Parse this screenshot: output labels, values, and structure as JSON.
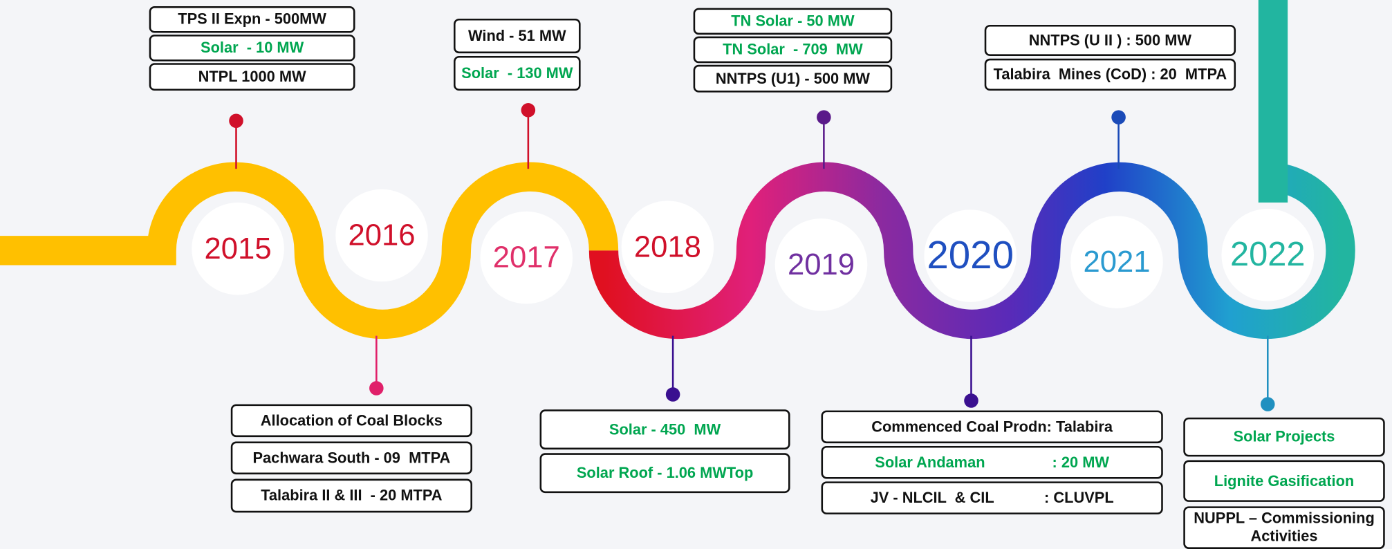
{
  "timeline": {
    "text_colors": {
      "black": "#111111",
      "green": "#00a650"
    },
    "years": [
      {
        "label": "2015",
        "color": "#d0102a",
        "pin_color": "#d0102a",
        "events": [
          {
            "text": "TPS II Expn - 500MW",
            "color": "black"
          },
          {
            "text": "Solar  - 10 MW",
            "color": "green"
          },
          {
            "text": "NTPL 1000 MW",
            "color": "black"
          }
        ]
      },
      {
        "label": "2016",
        "color": "#d0102a",
        "pin_color": "#e0206a",
        "events": [
          {
            "text": "Allocation of Coal Blocks",
            "color": "black"
          },
          {
            "text": "Pachwara South - 09  MTPA",
            "color": "black"
          },
          {
            "text": "Talabira II & III  - 20 MTPA",
            "color": "black"
          }
        ]
      },
      {
        "label": "2017",
        "color": "#e0306a",
        "pin_color": "#d0102a",
        "events": [
          {
            "text": "Wind - 51 MW",
            "color": "black"
          },
          {
            "text": "Solar  - 130 MW",
            "color": "green"
          }
        ]
      },
      {
        "label": "2018",
        "color": "#d0102a",
        "pin_color": "#3a1090",
        "events": [
          {
            "text": "Solar - 450  MW",
            "color": "green"
          },
          {
            "text": "Solar Roof - 1.06 MWTop",
            "color": "green"
          }
        ]
      },
      {
        "label": "2019",
        "color": "#7030a0",
        "pin_color": "#5a1a8a",
        "events": [
          {
            "text": "TN Solar - 50 MW",
            "color": "green"
          },
          {
            "text": "TN Solar  - 709  MW",
            "color": "green"
          },
          {
            "text": "NNTPS (U1) - 500 MW",
            "color": "black"
          }
        ]
      },
      {
        "label": "2020",
        "color": "#1f4fc0",
        "pin_color": "#3a1090",
        "events": [
          {
            "text": "Commenced Coal Prodn: Talabira",
            "color": "black"
          },
          {
            "text": "Solar Andaman                : 20 MW",
            "color": "green"
          },
          {
            "text": "JV - NLCIL  & CIL            : CLUVPL",
            "color": "black"
          }
        ]
      },
      {
        "label": "2021",
        "color": "#2a9ad0",
        "pin_color": "#1a4ab8",
        "events": [
          {
            "text": "NNTPS (U II ) : 500 MW",
            "color": "black"
          },
          {
            "text": "Talabira  Mines (CoD) : 20  MTPA",
            "color": "black"
          }
        ]
      },
      {
        "label": "2022",
        "color": "#22b5a0",
        "pin_color": "#2090c0",
        "events": [
          {
            "text": "Solar Projects",
            "color": "green"
          },
          {
            "text": "Lignite Gasification",
            "color": "green"
          },
          {
            "text": "NUPPL – Commissioning Activities",
            "color": "black"
          }
        ]
      }
    ]
  }
}
